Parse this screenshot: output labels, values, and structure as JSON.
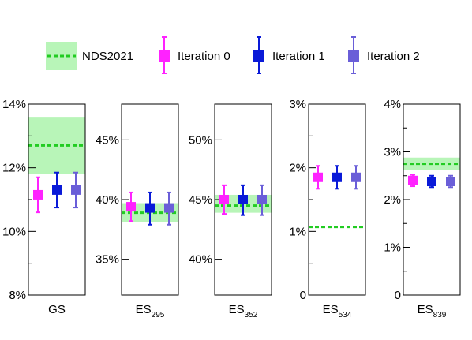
{
  "colors": {
    "nds_line": "#22cc22",
    "nds_band": "#b8f5b8",
    "iteration_0": "#ff22ff",
    "iteration_1": "#0a1ad8",
    "iteration_2": "#6a5ed8"
  },
  "legend": [
    {
      "label": "NDS2021",
      "kind": "band-line",
      "color_key": "nds_line"
    },
    {
      "label": "Iteration 0",
      "kind": "marker",
      "color_key": "iteration_0"
    },
    {
      "label": "Iteration 1",
      "kind": "marker",
      "color_key": "iteration_1"
    },
    {
      "label": "Iteration 2",
      "kind": "marker",
      "color_key": "iteration_2"
    }
  ],
  "chart_data": [
    {
      "type": "scatter",
      "category": {
        "main": "GS",
        "sub": ""
      },
      "ylim": [
        8,
        14
      ],
      "ticks": [
        {
          "v": 8,
          "label": "8%"
        },
        {
          "v": 10,
          "label": "10%"
        },
        {
          "v": 12,
          "label": "12%"
        },
        {
          "v": 14,
          "label": "14%"
        }
      ],
      "minor_ticks": [
        9,
        11,
        13
      ],
      "nds": {
        "value": 12.7,
        "low": 11.8,
        "high": 13.6
      },
      "series": [
        {
          "name": "Iteration 0",
          "value": 11.15,
          "err_low": 10.6,
          "err_high": 11.7
        },
        {
          "name": "Iteration 1",
          "value": 11.3,
          "err_low": 10.75,
          "err_high": 11.85
        },
        {
          "name": "Iteration 2",
          "value": 11.3,
          "err_low": 10.75,
          "err_high": 11.85
        }
      ]
    },
    {
      "type": "scatter",
      "category": {
        "main": "ES",
        "sub": "295"
      },
      "ylim": [
        32,
        48
      ],
      "ticks": [
        {
          "v": 35,
          "label": "35%"
        },
        {
          "v": 40,
          "label": "40%"
        },
        {
          "v": 45,
          "label": "45%"
        }
      ],
      "minor_ticks": [],
      "nds": {
        "value": 38.9,
        "low": 38.1,
        "high": 39.7
      },
      "series": [
        {
          "name": "Iteration 0",
          "value": 39.4,
          "err_low": 38.2,
          "err_high": 40.6
        },
        {
          "name": "Iteration 1",
          "value": 39.3,
          "err_low": 37.9,
          "err_high": 40.6
        },
        {
          "name": "Iteration 2",
          "value": 39.3,
          "err_low": 37.9,
          "err_high": 40.6
        }
      ]
    },
    {
      "type": "scatter",
      "category": {
        "main": "ES",
        "sub": "352"
      },
      "ylim": [
        37,
        53
      ],
      "ticks": [
        {
          "v": 40,
          "label": "40%"
        },
        {
          "v": 45,
          "label": "45%"
        },
        {
          "v": 50,
          "label": "50%"
        }
      ],
      "minor_ticks": [],
      "nds": {
        "value": 44.5,
        "low": 43.9,
        "high": 45.4
      },
      "series": [
        {
          "name": "Iteration 0",
          "value": 45.0,
          "err_low": 43.8,
          "err_high": 46.2
        },
        {
          "name": "Iteration 1",
          "value": 45.0,
          "err_low": 43.7,
          "err_high": 46.2
        },
        {
          "name": "Iteration 2",
          "value": 45.0,
          "err_low": 43.7,
          "err_high": 46.2
        }
      ]
    },
    {
      "type": "scatter",
      "category": {
        "main": "ES",
        "sub": "534"
      },
      "ylim": [
        0,
        3
      ],
      "ticks": [
        {
          "v": 0,
          "label": "0"
        },
        {
          "v": 1,
          "label": "1%"
        },
        {
          "v": 2,
          "label": "2%"
        },
        {
          "v": 3,
          "label": "3%"
        }
      ],
      "minor_ticks": [
        0.5,
        1.5,
        2.5
      ],
      "nds": {
        "value": 1.07,
        "low": 1.07,
        "high": 1.07
      },
      "series": [
        {
          "name": "Iteration 0",
          "value": 1.85,
          "err_low": 1.67,
          "err_high": 2.03
        },
        {
          "name": "Iteration 1",
          "value": 1.85,
          "err_low": 1.67,
          "err_high": 2.03
        },
        {
          "name": "Iteration 2",
          "value": 1.85,
          "err_low": 1.67,
          "err_high": 2.03
        }
      ]
    },
    {
      "type": "scatter",
      "category": {
        "main": "ES",
        "sub": "839"
      },
      "ylim": [
        0,
        4
      ],
      "ticks": [
        {
          "v": 0,
          "label": "0"
        },
        {
          "v": 1,
          "label": "1%"
        },
        {
          "v": 2,
          "label": "2%"
        },
        {
          "v": 3,
          "label": "3%"
        },
        {
          "v": 4,
          "label": "4%"
        }
      ],
      "minor_ticks": [
        0.5,
        1.5,
        2.5,
        3.5
      ],
      "nds": {
        "value": 2.75,
        "low": 2.62,
        "high": 2.88
      },
      "series": [
        {
          "name": "Iteration 0",
          "value": 2.4,
          "err_low": 2.28,
          "err_high": 2.52
        },
        {
          "name": "Iteration 1",
          "value": 2.38,
          "err_low": 2.26,
          "err_high": 2.5
        },
        {
          "name": "Iteration 2",
          "value": 2.38,
          "err_low": 2.26,
          "err_high": 2.5
        }
      ]
    }
  ]
}
